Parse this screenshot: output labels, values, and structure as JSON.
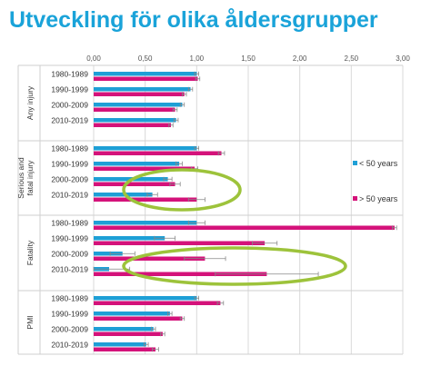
{
  "title": "Utveckling för olika åldersgrupper",
  "chart_data": {
    "type": "bar",
    "orientation": "horizontal",
    "title": "Utveckling för olika åldersgrupper",
    "xlim": [
      0,
      3.0
    ],
    "x_ticks": [
      "0,00",
      "0,50",
      "1,00",
      "1,50",
      "2,00",
      "2,50",
      "3,00"
    ],
    "x_tick_values": [
      0,
      0.5,
      1.0,
      1.5,
      2.0,
      2.5,
      3.0
    ],
    "grid": true,
    "legend_position": "right",
    "legend": [
      {
        "name": "< 50 years",
        "color": "#1e9fd6"
      },
      {
        "name": "> 50 years",
        "color": "#d4127a"
      }
    ],
    "colors": {
      "under50": "#1e9fd6",
      "over50": "#d4127a",
      "highlight": "#9dc33b"
    },
    "groups": [
      {
        "name": "Any injury",
        "categories": [
          "1980-1989",
          "1990-1999",
          "2000-2009",
          "2010-2019"
        ],
        "under50": [
          1.0,
          0.94,
          0.86,
          0.8
        ],
        "under50_err": [
          0.02,
          0.02,
          0.02,
          0.02
        ],
        "over50": [
          1.01,
          0.88,
          0.79,
          0.75
        ],
        "over50_err": [
          0.02,
          0.02,
          0.02,
          0.02
        ]
      },
      {
        "name": "Serious and fatal injury",
        "categories": [
          "1980-1989",
          "1990-1999",
          "2000-2009",
          "2010-2019"
        ],
        "under50": [
          1.0,
          0.83,
          0.72,
          0.57
        ],
        "under50_err": [
          0.02,
          0.03,
          0.04,
          0.05
        ],
        "over50": [
          1.24,
          0.98,
          0.79,
          1.0
        ],
        "over50_err": [
          0.03,
          0.03,
          0.05,
          0.08
        ]
      },
      {
        "name": "Fatality",
        "categories": [
          "1980-1989",
          "1990-1999",
          "2000-2009",
          "2010-2019"
        ],
        "under50": [
          1.0,
          0.69,
          0.28,
          0.15
        ],
        "under50_err": [
          0.08,
          0.1,
          0.12,
          0.2
        ],
        "over50": [
          2.92,
          1.66,
          1.08,
          1.68
        ],
        "over50_err": [
          0.02,
          0.12,
          0.2,
          0.5
        ]
      },
      {
        "name": "PMI",
        "categories": [
          "1980-1989",
          "1990-1999",
          "2000-2009",
          "2010-2019"
        ],
        "under50": [
          1.0,
          0.74,
          0.58,
          0.51
        ],
        "under50_err": [
          0.02,
          0.02,
          0.02,
          0.02
        ],
        "over50": [
          1.23,
          0.86,
          0.67,
          0.6
        ],
        "over50_err": [
          0.03,
          0.02,
          0.02,
          0.03
        ]
      }
    ]
  }
}
